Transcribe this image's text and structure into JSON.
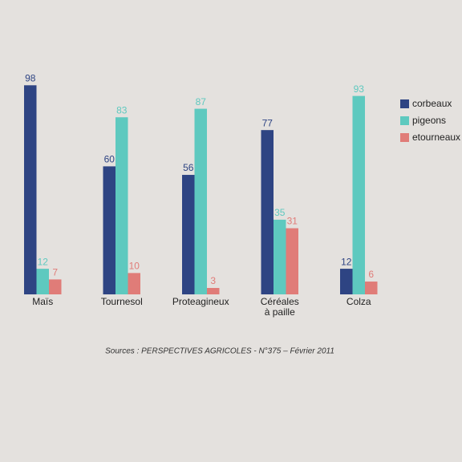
{
  "chart_data": {
    "type": "bar",
    "categories": [
      [
        "Maïs"
      ],
      [
        "Tournesol"
      ],
      [
        "Proteagineux"
      ],
      [
        "Céréales",
        "à paille"
      ],
      [
        "Colza"
      ]
    ],
    "series": [
      {
        "name": "corbeaux",
        "color": "#2e4483",
        "values": [
          98,
          60,
          56,
          77,
          12
        ]
      },
      {
        "name": "pigeons",
        "color": "#5ec9bf",
        "values": [
          12,
          83,
          87,
          35,
          93
        ]
      },
      {
        "name": "etourneaux",
        "color": "#e07c78",
        "values": [
          7,
          10,
          3,
          31,
          6
        ]
      }
    ],
    "source": "Sources : PERSPECTIVES AGRICOLES - N°375 – Février 2011"
  }
}
